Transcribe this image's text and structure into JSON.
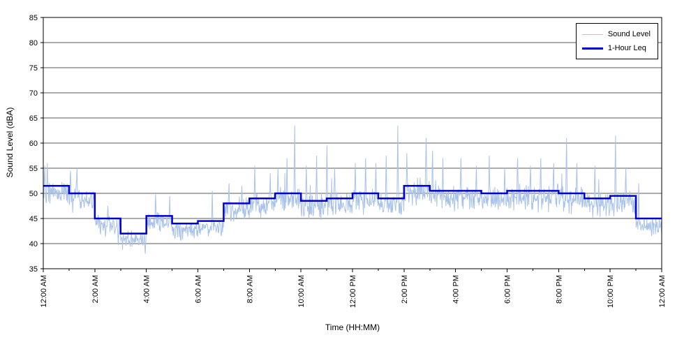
{
  "chart_data": {
    "type": "line",
    "title": "",
    "xlabel": "Time (HH:MM)",
    "ylabel": "Sound Level (dBA)",
    "ylim": [
      35,
      85
    ],
    "ytick_step": 5,
    "xlim_hours": [
      0,
      24
    ],
    "xtick_hours": [
      0,
      2,
      4,
      6,
      8,
      10,
      12,
      14,
      16,
      18,
      20,
      22,
      24
    ],
    "xtick_labels": [
      "12:00 AM",
      "2:00 AM",
      "4:00 AM",
      "6:00 AM",
      "8:00 AM",
      "10:00 AM",
      "12:00 PM",
      "2:00 PM",
      "4:00 PM",
      "6:00 PM",
      "8:00 PM",
      "10:00 PM",
      "12:00 AM"
    ],
    "grid": "horizontal",
    "grid_color": "#5a5a5a",
    "legend": {
      "position": "top-right",
      "entries": [
        {
          "label": "Sound Level",
          "color": "#a9c2ea",
          "width": 1
        },
        {
          "label": "1-Hour Leq",
          "color": "#0000cc",
          "width": 3
        }
      ]
    },
    "series": [
      {
        "name": "Sound Level",
        "type": "noisy-line",
        "color": "#a9c2ea",
        "samples_per_hour": 60,
        "seed": 42,
        "center_offset": -1.3,
        "hourly_spread": [
          2.5,
          2.6,
          2.0,
          1.9,
          2.0,
          1.8,
          1.8,
          2.4,
          2.6,
          2.8,
          2.8,
          2.8,
          2.8,
          2.8,
          2.8,
          2.8,
          2.8,
          2.8,
          2.8,
          2.8,
          2.8,
          2.6,
          2.6,
          2.0
        ],
        "spikes": [
          [
            0.05,
            55.5
          ],
          [
            0.15,
            56
          ],
          [
            1.05,
            54.5
          ],
          [
            1.3,
            55
          ],
          [
            2.5,
            47.5
          ],
          [
            4.35,
            49.8
          ],
          [
            4.9,
            49.5
          ],
          [
            6.55,
            50.5
          ],
          [
            7.2,
            52
          ],
          [
            7.7,
            51.5
          ],
          [
            8.2,
            55.5
          ],
          [
            8.8,
            54
          ],
          [
            9.1,
            55
          ],
          [
            9.45,
            57
          ],
          [
            9.75,
            63.5
          ],
          [
            10.2,
            55.5
          ],
          [
            10.6,
            57.5
          ],
          [
            11.0,
            59.5
          ],
          [
            11.3,
            55
          ],
          [
            12.1,
            56
          ],
          [
            12.5,
            57
          ],
          [
            12.9,
            56
          ],
          [
            13.3,
            57.5
          ],
          [
            13.75,
            63.5
          ],
          [
            14.1,
            58
          ],
          [
            14.85,
            61
          ],
          [
            15.1,
            58.5
          ],
          [
            15.5,
            57
          ],
          [
            16.2,
            57
          ],
          [
            16.8,
            55.5
          ],
          [
            17.3,
            57.5
          ],
          [
            17.9,
            55
          ],
          [
            18.4,
            57
          ],
          [
            18.9,
            55.5
          ],
          [
            19.3,
            57
          ],
          [
            19.8,
            56
          ],
          [
            20.3,
            61
          ],
          [
            20.7,
            56
          ],
          [
            21.4,
            55.5
          ],
          [
            22.2,
            61.5
          ],
          [
            22.6,
            55
          ],
          [
            23.1,
            52
          ]
        ],
        "dips": [
          [
            2.9,
            39.7
          ],
          [
            3.3,
            40
          ],
          [
            3.95,
            38
          ],
          [
            5.1,
            41
          ],
          [
            6.9,
            41.5
          ],
          [
            23.6,
            41.5
          ]
        ]
      },
      {
        "name": "1-Hour Leq",
        "type": "step",
        "color": "#0000cc",
        "hourly_values": [
          51.5,
          50,
          45,
          42,
          45.5,
          44,
          44.5,
          48,
          49,
          50,
          48.5,
          49,
          50,
          49,
          51.5,
          50.5,
          50.5,
          50,
          50.5,
          50.5,
          50,
          49,
          49.5,
          45
        ]
      }
    ]
  }
}
